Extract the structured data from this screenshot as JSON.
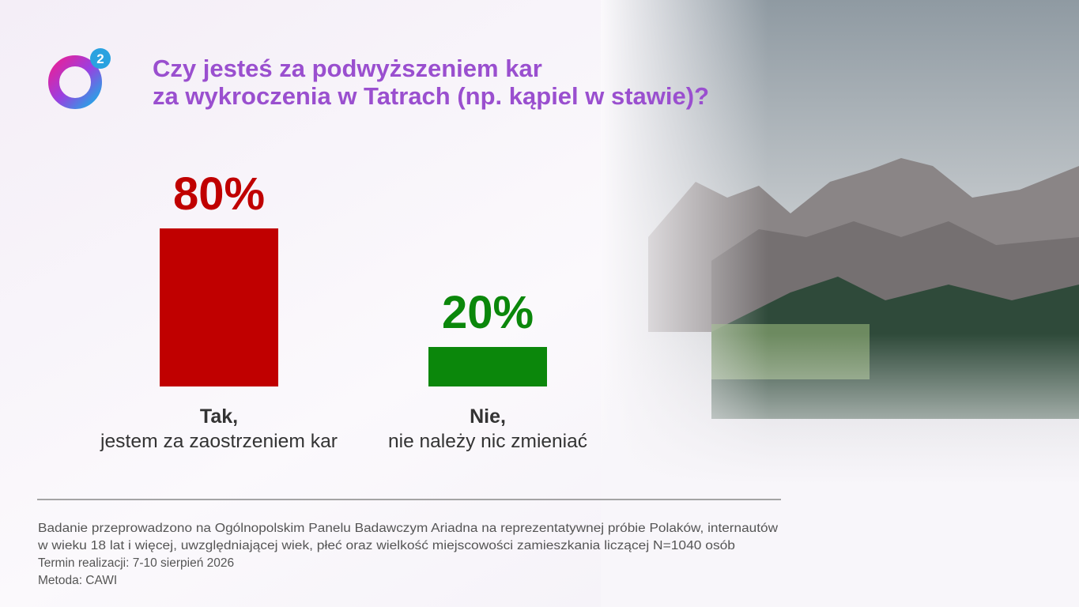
{
  "logo_text": "2",
  "chart_data": {
    "type": "bar",
    "title": [
      "Czy jesteś za podwyższeniem kar",
      "za wykroczenia w Tatrach (np. kąpiel w stawie)?"
    ],
    "categories": [
      "Tak,",
      "Nie,"
    ],
    "category_notes": [
      "jestem za zaostrzeniem kar",
      "nie należy nic zmieniać"
    ],
    "values": [
      80,
      20
    ],
    "value_labels": [
      "80%",
      "20%"
    ],
    "colors": [
      "#c00000",
      "#0b870b"
    ]
  },
  "footnote": [
    "Badanie przeprowadzono na Ogólnopolskim Panelu Badawczym Ariadna na reprezentatywnej próbie Polaków, internautów",
    "w wieku 18 lat i więcej, uwzględniającej wiek, płeć oraz wielkość miejscowości zamieszkania liczącej N=1040 osób",
    "Termin realizacji: 7-10 sierpień 2026",
    "Metoda: CAWI"
  ]
}
